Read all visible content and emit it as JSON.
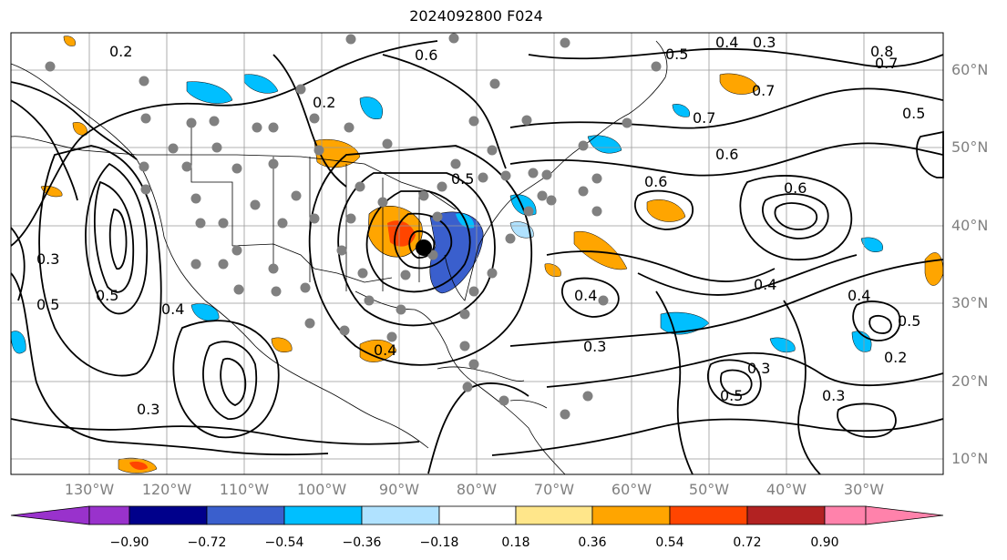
{
  "title": "2024092800 F024",
  "map": {
    "lat_labels": [
      "60°N",
      "50°N",
      "40°N",
      "30°N",
      "20°N",
      "10°N"
    ],
    "lon_labels": [
      "130°W",
      "120°W",
      "110°W",
      "100°W",
      "90°W",
      "80°W",
      "70°W",
      "60°W",
      "50°W",
      "40°W",
      "30°W"
    ],
    "contour_labels": [
      "0.2",
      "0.6",
      "0.5",
      "0.4",
      "0.3",
      "0.8",
      "0.7",
      "0.2",
      "0.5",
      "0.7",
      "0.6",
      "0.5",
      "0.6",
      "0.6",
      "0.7",
      "0.4",
      "0.3",
      "0.4",
      "0.5",
      "0.4",
      "0.5",
      "0.3",
      "0.3",
      "0.2",
      "0.3",
      "0.4",
      "0.3",
      "0.5",
      "0.4",
      "0.5"
    ]
  },
  "colorbar": {
    "ticks": [
      "−0.90",
      "−0.72",
      "−0.54",
      "−0.36",
      "−0.18",
      "0.18",
      "0.36",
      "0.54",
      "0.72",
      "0.90"
    ],
    "colors": [
      "#9932cc",
      "#00008b",
      "#3a5fcd",
      "#00bfff",
      "#b0e2ff",
      "#ffffff",
      "#ffe68a",
      "#ffa500",
      "#ff4500",
      "#b22222",
      "#ff82ab"
    ]
  }
}
